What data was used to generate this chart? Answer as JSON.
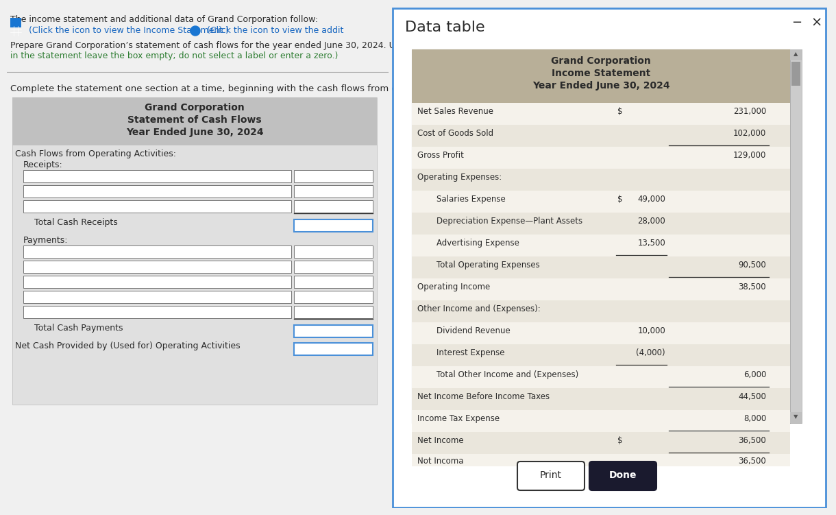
{
  "bg_color": "#f0f0f0",
  "white": "#ffffff",
  "blue_border": "#4a90d9",
  "dark_text": "#2a2a2a",
  "green_text": "#2e7d32",
  "blue_text": "#1565c0",
  "blue_icon": "#1976d2",
  "modal_bg": "#ffffff",
  "header_bg_left": "#c0c0c0",
  "table_header_bg": "#b8af98",
  "table_row_bg1": "#f5f2eb",
  "table_row_bg2": "#eae6dc",
  "scrollbar_bg": "#cccccc",
  "scrollbar_thumb": "#999999",
  "done_btn_bg": "#1a1a2e",
  "form_bg": "#e0e0e0",
  "top_text1": "The income statement and additional data of Grand Corporation follow:",
  "top_link1": "  (Click the icon to view the Income Statement.)",
  "top_link2": "  (Click the icon to view the addit",
  "top_text2": "Prepare Grand Corporation’s statement of cash flows for the year ended June 30, 2024. Use the direct",
  "top_text3": "in the statement leave the box empty; do not select a label or enter a zero.)",
  "instruction": "Complete the statement one section at a time, beginning with the cash flows from operating activities.",
  "left_panel_title1": "Grand Corporation",
  "left_panel_title2": "Statement of Cash Flows",
  "left_panel_title3": "Year Ended June 30, 2024",
  "label_cash_flows": "Cash Flows from Operating Activities:",
  "label_receipts": "Receipts:",
  "label_total_receipts": "Total Cash Receipts",
  "label_payments": "Payments:",
  "label_total_payments": "Total Cash Payments",
  "label_net_cash": "Net Cash Provided by (Used for) Operating Activities",
  "modal_title": "Data table",
  "income_title1": "Grand Corporation",
  "income_title2": "Income Statement",
  "income_title3": "Year Ended June 30, 2024",
  "income_rows": [
    {
      "label": "Net Sales Revenue",
      "sym": "$",
      "c1": "",
      "c2": "231,000",
      "indent": 0,
      "ul1": false,
      "ul2": false
    },
    {
      "label": "Cost of Goods Sold",
      "sym": "",
      "c1": "",
      "c2": "102,000",
      "indent": 0,
      "ul1": false,
      "ul2": true
    },
    {
      "label": "Gross Profit",
      "sym": "",
      "c1": "",
      "c2": "129,000",
      "indent": 0,
      "ul1": false,
      "ul2": false
    },
    {
      "label": "Operating Expenses:",
      "sym": "",
      "c1": "",
      "c2": "",
      "indent": 0,
      "ul1": false,
      "ul2": false
    },
    {
      "label": "Salaries Expense",
      "sym": "$",
      "c1": "49,000",
      "c2": "",
      "indent": 1,
      "ul1": false,
      "ul2": false
    },
    {
      "label": "Depreciation Expense—Plant Assets",
      "sym": "",
      "c1": "28,000",
      "c2": "",
      "indent": 1,
      "ul1": false,
      "ul2": false
    },
    {
      "label": "Advertising Expense",
      "sym": "",
      "c1": "13,500",
      "c2": "",
      "indent": 1,
      "ul1": true,
      "ul2": false
    },
    {
      "label": "Total Operating Expenses",
      "sym": "",
      "c1": "",
      "c2": "90,500",
      "indent": 1,
      "ul1": false,
      "ul2": true
    },
    {
      "label": "Operating Income",
      "sym": "",
      "c1": "",
      "c2": "38,500",
      "indent": 0,
      "ul1": false,
      "ul2": false
    },
    {
      "label": "Other Income and (Expenses):",
      "sym": "",
      "c1": "",
      "c2": "",
      "indent": 0,
      "ul1": false,
      "ul2": false
    },
    {
      "label": "Dividend Revenue",
      "sym": "",
      "c1": "10,000",
      "c2": "",
      "indent": 1,
      "ul1": false,
      "ul2": false
    },
    {
      "label": "Interest Expense",
      "sym": "",
      "c1": "(4,000)",
      "c2": "",
      "indent": 1,
      "ul1": true,
      "ul2": false
    },
    {
      "label": "Total Other Income and (Expenses)",
      "sym": "",
      "c1": "",
      "c2": "6,000",
      "indent": 1,
      "ul1": false,
      "ul2": true
    },
    {
      "label": "Net Income Before Income Taxes",
      "sym": "",
      "c1": "",
      "c2": "44,500",
      "indent": 0,
      "ul1": false,
      "ul2": false
    },
    {
      "label": "Income Tax Expense",
      "sym": "",
      "c1": "",
      "c2": "8,000",
      "indent": 0,
      "ul1": false,
      "ul2": true
    },
    {
      "label": "Net Income",
      "sym": "$",
      "c1": "",
      "c2": "36,500",
      "indent": 0,
      "ul1": false,
      "ul2": true
    }
  ]
}
